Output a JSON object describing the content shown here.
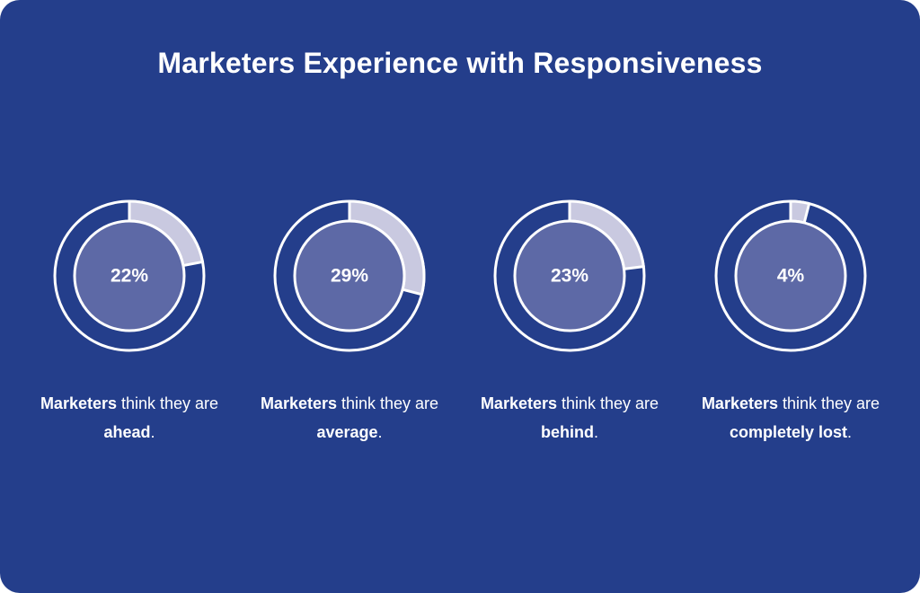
{
  "title": "Marketers Experience with Responsiveness",
  "colors": {
    "background": "#243e8b",
    "ring": "#ffffff",
    "slice": "#c9c9e0",
    "inner": "#5d69a6"
  },
  "chart_data": {
    "type": "pie",
    "title": "Marketers Experience with Responsiveness",
    "charts": [
      {
        "value": 22,
        "label": "22%",
        "caption_bold": "Marketers",
        "caption_mid": " think they are ",
        "caption_emph": "ahead",
        "caption_end": "."
      },
      {
        "value": 29,
        "label": "29%",
        "caption_bold": "Marketers",
        "caption_mid": " think they are ",
        "caption_emph": "average",
        "caption_end": "."
      },
      {
        "value": 23,
        "label": "23%",
        "caption_bold": "Marketers",
        "caption_mid": " think they are ",
        "caption_emph": "behind",
        "caption_end": "."
      },
      {
        "value": 4,
        "label": "4%",
        "caption_bold": "Marketers",
        "caption_mid": " think they are ",
        "caption_emph": "completely lost",
        "caption_end": "."
      }
    ]
  }
}
